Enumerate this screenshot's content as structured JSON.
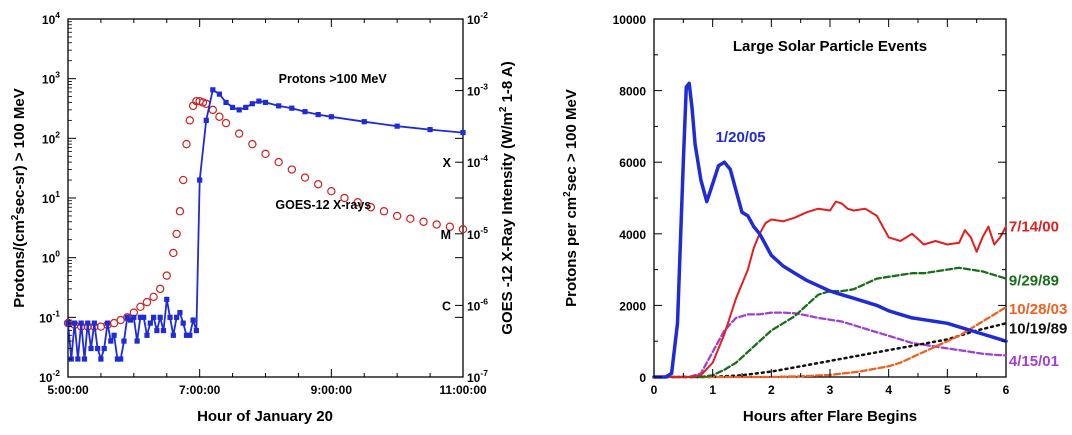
{
  "chart_data": [
    {
      "type": "scatter",
      "xlabel": "Hour of January 20",
      "ylabel": "Protons/(cm²sec-sr) > 100 MeV",
      "ylabel_right": "GOES -12 X-Ray Intensity (W/m² 1-8 A)",
      "x_ticks": [
        "5:00:00",
        "7:00:00",
        "9:00:00",
        "11:00:00"
      ],
      "xlim": [
        5,
        11
      ],
      "ylim": [
        0.01,
        10000
      ],
      "y_scale": "log",
      "y_ticks": [
        {
          "base": "10",
          "exp": "-2"
        },
        {
          "base": "10",
          "exp": "-1"
        },
        {
          "base": "10",
          "exp": "0"
        },
        {
          "base": "10",
          "exp": "1"
        },
        {
          "base": "10",
          "exp": "2"
        },
        {
          "base": "10",
          "exp": "3"
        },
        {
          "base": "10",
          "exp": "4"
        }
      ],
      "y2lim": [
        1e-07,
        0.01
      ],
      "y2_ticks": [
        {
          "base": "10",
          "exp": "-7"
        },
        {
          "base": "10",
          "exp": "-6"
        },
        {
          "base": "10",
          "exp": "-5"
        },
        {
          "base": "10",
          "exp": "-4"
        },
        {
          "base": "10",
          "exp": "-3"
        },
        {
          "base": "10",
          "exp": "-2"
        }
      ],
      "flare_classes": [
        {
          "label": "X",
          "value": 0.0001
        },
        {
          "label": "M",
          "value": 1e-05
        },
        {
          "label": "C",
          "value": 1e-06
        }
      ],
      "series": [
        {
          "name": "Protons >100 MeV",
          "color": "#1f2bd6",
          "marker": "filled-square",
          "x": [
            5.0,
            5.05,
            5.1,
            5.15,
            5.2,
            5.25,
            5.3,
            5.35,
            5.4,
            5.45,
            5.5,
            5.55,
            5.6,
            5.65,
            5.7,
            5.75,
            5.8,
            5.85,
            5.9,
            5.95,
            6.0,
            6.05,
            6.1,
            6.15,
            6.2,
            6.25,
            6.3,
            6.35,
            6.4,
            6.45,
            6.5,
            6.55,
            6.6,
            6.65,
            6.7,
            6.75,
            6.8,
            6.85,
            6.9,
            6.95,
            7.0,
            7.1,
            7.2,
            7.3,
            7.4,
            7.5,
            7.6,
            7.7,
            7.8,
            7.9,
            8.0,
            8.2,
            8.4,
            8.6,
            8.8,
            9.0,
            9.5,
            10.0,
            10.5,
            11.0
          ],
          "y": [
            0.08,
            0.02,
            0.08,
            0.02,
            0.08,
            0.02,
            0.08,
            0.03,
            0.08,
            0.03,
            0.02,
            0.03,
            0.08,
            0.04,
            0.05,
            0.02,
            0.02,
            0.04,
            0.1,
            0.09,
            0.1,
            0.04,
            0.1,
            0.1,
            0.05,
            0.08,
            0.1,
            0.06,
            0.1,
            0.06,
            0.2,
            0.1,
            0.05,
            0.1,
            0.12,
            0.08,
            0.05,
            0.05,
            0.09,
            0.06,
            20,
            200,
            650,
            550,
            400,
            330,
            300,
            330,
            380,
            420,
            400,
            350,
            320,
            280,
            250,
            230,
            190,
            160,
            140,
            125
          ]
        },
        {
          "name": "GOES-12 X-rays",
          "color": "#cc2222",
          "marker": "open-circle",
          "x": [
            5.0,
            5.1,
            5.2,
            5.3,
            5.4,
            5.5,
            5.6,
            5.7,
            5.8,
            5.9,
            6.0,
            6.1,
            6.2,
            6.3,
            6.4,
            6.5,
            6.6,
            6.65,
            6.7,
            6.75,
            6.8,
            6.85,
            6.9,
            6.95,
            7.0,
            7.05,
            7.1,
            7.2,
            7.3,
            7.4,
            7.6,
            7.8,
            8.0,
            8.2,
            8.4,
            8.6,
            8.8,
            9.0,
            9.2,
            9.4,
            9.6,
            9.8,
            10.0,
            10.2,
            10.4,
            10.6,
            10.8,
            11.0
          ],
          "y": [
            0.08,
            0.075,
            0.07,
            0.07,
            0.07,
            0.07,
            0.075,
            0.08,
            0.09,
            0.1,
            0.12,
            0.15,
            0.18,
            0.22,
            0.3,
            0.5,
            1.2,
            2.5,
            6,
            20,
            80,
            200,
            350,
            420,
            420,
            400,
            380,
            300,
            230,
            180,
            120,
            80,
            55,
            40,
            30,
            22,
            17,
            13,
            10,
            8.5,
            7,
            6,
            5,
            4.5,
            4,
            3.6,
            3.3,
            3.0
          ]
        }
      ],
      "annotations": [
        {
          "text": "Protons >100 MeV",
          "x": 8.2,
          "y": 850
        },
        {
          "text": "GOES-12 X-rays",
          "x": 8.15,
          "y": 6.5
        }
      ]
    },
    {
      "type": "line",
      "title": "Large Solar Particle Events",
      "xlabel": "Hours after Flare Begins",
      "ylabel": "Protons per cm²sec > 100 MeV",
      "xlim": [
        0,
        6
      ],
      "ylim": [
        0,
        10000
      ],
      "x_ticks": [
        0,
        1,
        2,
        3,
        4,
        5,
        6
      ],
      "y_ticks": [
        0,
        2000,
        4000,
        6000,
        8000,
        10000
      ],
      "series": [
        {
          "name": "1/20/05",
          "color": "#1f2bd6",
          "style": "solid-thick",
          "x": [
            0,
            0.2,
            0.3,
            0.4,
            0.5,
            0.55,
            0.6,
            0.65,
            0.7,
            0.8,
            0.9,
            1.0,
            1.1,
            1.2,
            1.3,
            1.4,
            1.5,
            1.6,
            1.7,
            1.8,
            1.9,
            2.0,
            2.2,
            2.4,
            2.6,
            2.8,
            3.0,
            3.2,
            3.4,
            3.6,
            3.8,
            4.0,
            4.2,
            4.4,
            4.6,
            4.8,
            5.0,
            5.2,
            5.4,
            5.6,
            5.8,
            6.0
          ],
          "y": [
            0,
            0,
            100,
            1500,
            6000,
            8100,
            8200,
            7500,
            6500,
            5500,
            4900,
            5400,
            5900,
            6000,
            5800,
            5200,
            4600,
            4500,
            4200,
            4000,
            3700,
            3400,
            3100,
            2900,
            2700,
            2550,
            2400,
            2300,
            2200,
            2100,
            2000,
            1850,
            1750,
            1650,
            1600,
            1550,
            1500,
            1400,
            1300,
            1200,
            1100,
            1000
          ]
        },
        {
          "name": "7/14/00",
          "color": "#e02020",
          "style": "solid",
          "x": [
            0,
            0.6,
            0.8,
            1.0,
            1.2,
            1.4,
            1.6,
            1.7,
            1.8,
            1.9,
            2.0,
            2.2,
            2.4,
            2.6,
            2.8,
            3.0,
            3.1,
            3.2,
            3.3,
            3.4,
            3.6,
            3.8,
            4.0,
            4.2,
            4.4,
            4.6,
            4.8,
            5.0,
            5.2,
            5.3,
            5.4,
            5.5,
            5.6,
            5.7,
            5.8,
            5.9,
            6.0
          ],
          "y": [
            0,
            0,
            50,
            400,
            1200,
            2200,
            3000,
            3600,
            4000,
            4300,
            4400,
            4350,
            4450,
            4600,
            4700,
            4650,
            4900,
            4850,
            4700,
            4650,
            4700,
            4500,
            3900,
            3800,
            4000,
            3700,
            3800,
            3700,
            3750,
            4100,
            3900,
            3500,
            3900,
            4200,
            3700,
            3900,
            4200
          ]
        },
        {
          "name": "9/29/89",
          "color": "#1a6e1a",
          "style": "dashed",
          "x": [
            0,
            0.8,
            1.0,
            1.2,
            1.4,
            1.6,
            1.8,
            2.0,
            2.2,
            2.4,
            2.6,
            2.8,
            3.0,
            3.2,
            3.4,
            3.6,
            3.8,
            4.0,
            4.2,
            4.4,
            4.6,
            4.8,
            5.0,
            5.2,
            5.4,
            5.6,
            5.8,
            6.0
          ],
          "y": [
            0,
            0,
            50,
            200,
            400,
            700,
            1000,
            1300,
            1500,
            1700,
            2000,
            2300,
            2400,
            2400,
            2450,
            2600,
            2750,
            2800,
            2850,
            2900,
            2900,
            2950,
            3000,
            3050,
            3000,
            2950,
            2850,
            2750
          ]
        },
        {
          "name": "10/28/03",
          "color": "#f06020",
          "style": "dashed",
          "x": [
            0,
            2.0,
            2.5,
            3.0,
            3.5,
            4.0,
            4.2,
            4.4,
            4.6,
            4.8,
            5.0,
            5.2,
            5.4,
            5.6,
            5.8,
            6.0
          ],
          "y": [
            0,
            0,
            20,
            60,
            150,
            300,
            400,
            550,
            700,
            850,
            1000,
            1150,
            1350,
            1550,
            1750,
            1950
          ]
        },
        {
          "name": "10/19/89",
          "color": "#111111",
          "style": "dotted",
          "x": [
            0,
            1.0,
            1.5,
            2.0,
            2.5,
            3.0,
            3.5,
            4.0,
            4.5,
            5.0,
            5.5,
            6.0
          ],
          "y": [
            0,
            0,
            50,
            150,
            300,
            450,
            600,
            750,
            900,
            1050,
            1300,
            1500
          ]
        },
        {
          "name": "4/15/01",
          "color": "#a040d0",
          "style": "dashed",
          "x": [
            0,
            0.6,
            0.8,
            1.0,
            1.2,
            1.4,
            1.6,
            1.8,
            2.0,
            2.2,
            2.4,
            2.6,
            2.8,
            3.0,
            3.2,
            3.4,
            3.6,
            3.8,
            4.0,
            4.2,
            4.4,
            4.6,
            4.8,
            5.0,
            5.2,
            5.4,
            5.6,
            5.8,
            6.0
          ],
          "y": [
            0,
            0,
            100,
            700,
            1300,
            1650,
            1750,
            1750,
            1800,
            1800,
            1780,
            1720,
            1650,
            1600,
            1550,
            1450,
            1350,
            1250,
            1150,
            1050,
            950,
            900,
            850,
            800,
            750,
            700,
            650,
            620,
            600
          ]
        }
      ],
      "labels": [
        {
          "text": "1/20/05",
          "color": "#1f2bd6",
          "x": 1.05,
          "y": 6700
        },
        {
          "text": "7/14/00",
          "color": "#e02020",
          "x": 6.05,
          "y": 4200
        },
        {
          "text": "9/29/89",
          "color": "#1a6e1a",
          "x": 6.05,
          "y": 2700
        },
        {
          "text": "10/28/03",
          "color": "#f06020",
          "x": 6.05,
          "y": 1900
        },
        {
          "text": "10/19/89",
          "color": "#111111",
          "x": 6.05,
          "y": 1350
        },
        {
          "text": "4/15/01",
          "color": "#a040d0",
          "x": 6.05,
          "y": 450
        }
      ]
    }
  ]
}
